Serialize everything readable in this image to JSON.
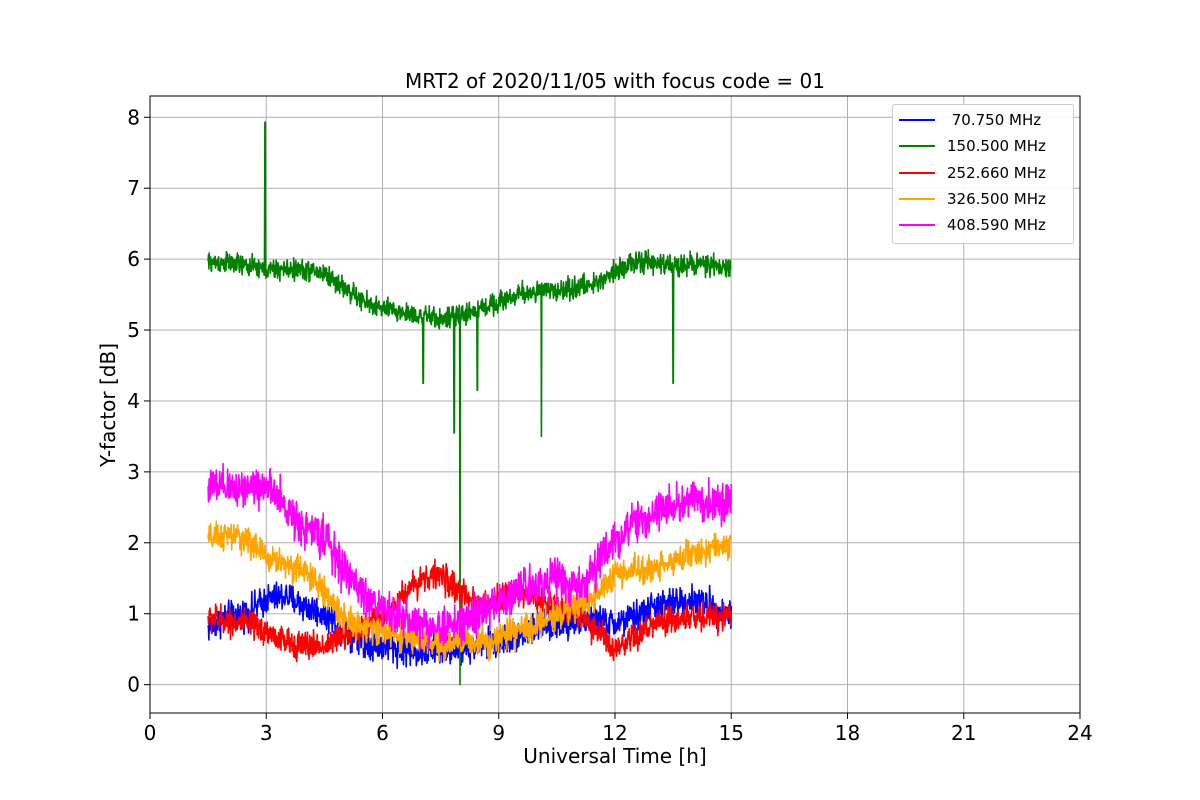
{
  "chart_data": {
    "type": "line",
    "title": "MRT2 of 2020/11/05 with focus code = 01",
    "xlabel": "Universal Time [h]",
    "ylabel": "Y-factor [dB]",
    "xlim": [
      0,
      24
    ],
    "ylim": [
      -0.4,
      8.3
    ],
    "xticks": [
      0,
      3,
      6,
      9,
      12,
      15,
      18,
      21,
      24
    ],
    "xtick_labels": [
      "0",
      "3",
      "6",
      "9",
      "12",
      "15",
      "18",
      "21",
      "24"
    ],
    "yticks": [
      0,
      1,
      2,
      3,
      4,
      5,
      6,
      7,
      8
    ],
    "ytick_labels": [
      "0",
      "1",
      "2",
      "3",
      "4",
      "5",
      "6",
      "7",
      "8"
    ],
    "grid": true,
    "legend_position": "top-right",
    "series": [
      {
        "name": " 70.750 MHz",
        "color": "#0000ff",
        "x": [
          1.5,
          2.0,
          2.5,
          3.0,
          3.5,
          4.0,
          4.5,
          5.0,
          5.5,
          6.0,
          6.5,
          7.0,
          7.5,
          8.0,
          8.5,
          9.0,
          9.5,
          10.0,
          10.5,
          11.0,
          11.5,
          12.0,
          12.5,
          13.0,
          13.5,
          14.0,
          14.5,
          15.0
        ],
        "y": [
          0.8,
          0.95,
          1.0,
          1.2,
          1.25,
          1.1,
          1.0,
          0.8,
          0.6,
          0.55,
          0.5,
          0.45,
          0.5,
          0.5,
          0.55,
          0.6,
          0.7,
          0.8,
          0.85,
          0.9,
          0.9,
          0.85,
          0.95,
          1.1,
          1.15,
          1.2,
          1.1,
          1.0
        ],
        "noise": 0.32
      },
      {
        "name": "150.500 MHz",
        "color": "#008000",
        "x": [
          1.5,
          2.0,
          2.5,
          3.0,
          3.5,
          4.0,
          4.5,
          5.0,
          5.5,
          6.0,
          6.5,
          7.0,
          7.5,
          8.0,
          8.5,
          9.0,
          9.5,
          10.0,
          10.5,
          11.0,
          11.5,
          12.0,
          12.5,
          13.0,
          13.5,
          14.0,
          14.5,
          15.0
        ],
        "y": [
          5.95,
          5.95,
          5.9,
          5.85,
          5.85,
          5.85,
          5.8,
          5.6,
          5.4,
          5.3,
          5.25,
          5.2,
          5.15,
          5.2,
          5.3,
          5.4,
          5.5,
          5.55,
          5.55,
          5.6,
          5.65,
          5.85,
          5.95,
          5.95,
          5.9,
          5.95,
          5.9,
          5.85
        ],
        "noise": 0.22,
        "spikes": [
          {
            "x": 2.97,
            "y": 7.93
          },
          {
            "x": 7.05,
            "y": 4.25
          },
          {
            "x": 7.85,
            "y": 3.55
          },
          {
            "x": 8.0,
            "y": 0.0
          },
          {
            "x": 8.45,
            "y": 4.15
          },
          {
            "x": 10.1,
            "y": 3.5
          },
          {
            "x": 13.5,
            "y": 4.25
          }
        ]
      },
      {
        "name": "252.660 MHz",
        "color": "#ff0000",
        "x": [
          1.5,
          2.0,
          2.5,
          3.0,
          3.5,
          4.0,
          4.5,
          5.0,
          5.5,
          6.0,
          6.5,
          7.0,
          7.5,
          8.0,
          8.5,
          9.0,
          9.5,
          10.0,
          10.5,
          11.0,
          11.5,
          12.0,
          12.5,
          13.0,
          13.5,
          14.0,
          14.5,
          15.0
        ],
        "y": [
          0.95,
          0.9,
          0.85,
          0.75,
          0.6,
          0.55,
          0.55,
          0.7,
          0.8,
          0.95,
          1.25,
          1.5,
          1.55,
          1.3,
          1.05,
          1.2,
          1.3,
          1.2,
          1.1,
          1.0,
          0.8,
          0.45,
          0.65,
          0.85,
          0.9,
          0.95,
          0.95,
          1.0
        ],
        "noise": 0.3
      },
      {
        "name": "326.500 MHz",
        "color": "#ffa500",
        "x": [
          1.5,
          2.0,
          2.5,
          3.0,
          3.5,
          4.0,
          4.5,
          5.0,
          5.5,
          6.0,
          6.5,
          7.0,
          7.5,
          8.0,
          8.5,
          9.0,
          9.5,
          10.0,
          10.5,
          11.0,
          11.5,
          12.0,
          12.5,
          13.0,
          13.5,
          14.0,
          14.5,
          15.0
        ],
        "y": [
          2.05,
          2.1,
          2.05,
          1.8,
          1.7,
          1.6,
          1.3,
          0.95,
          0.8,
          0.75,
          0.7,
          0.6,
          0.55,
          0.6,
          0.6,
          0.65,
          0.75,
          0.85,
          1.0,
          1.1,
          1.25,
          1.55,
          1.6,
          1.65,
          1.75,
          1.85,
          1.9,
          2.0
        ],
        "noise": 0.3
      },
      {
        "name": "408.590 MHz",
        "color": "#ff00ff",
        "x": [
          1.5,
          2.0,
          2.5,
          3.0,
          3.5,
          4.0,
          4.5,
          5.0,
          5.5,
          6.0,
          6.5,
          7.0,
          7.5,
          8.0,
          8.5,
          9.0,
          9.5,
          10.0,
          10.5,
          11.0,
          11.5,
          12.0,
          12.5,
          13.0,
          13.5,
          14.0,
          14.5,
          15.0
        ],
        "y": [
          2.8,
          2.75,
          2.8,
          2.8,
          2.5,
          2.2,
          2.1,
          1.6,
          1.3,
          1.05,
          0.95,
          0.85,
          0.8,
          0.85,
          1.0,
          1.15,
          1.35,
          1.45,
          1.5,
          1.35,
          1.65,
          2.05,
          2.25,
          2.4,
          2.55,
          2.6,
          2.55,
          2.6
        ],
        "noise": 0.42
      }
    ]
  }
}
